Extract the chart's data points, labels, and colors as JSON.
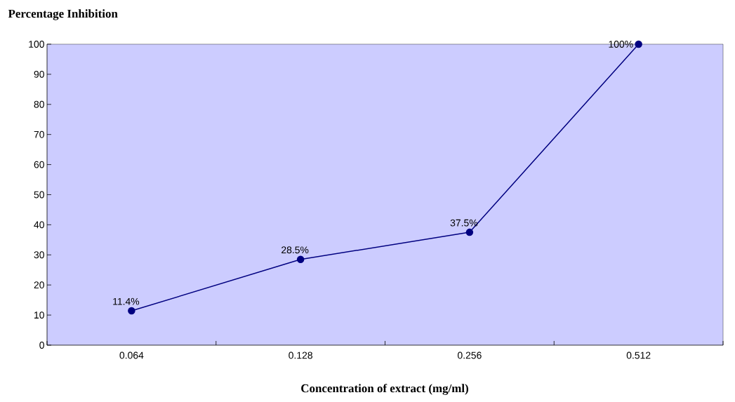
{
  "chart_data": {
    "type": "line",
    "title": "Percentage Inhibition",
    "xlabel": "Concentration of extract (mg/ml)",
    "categories": [
      "0.064",
      "0.128",
      "0.256",
      "0.512"
    ],
    "values": [
      11.4,
      28.5,
      37.5,
      100
    ],
    "value_labels": [
      "11.4%",
      "28.5%",
      "37.5%",
      "100%"
    ],
    "color": "#000080",
    "marker": "circle",
    "line_style": "solid",
    "ylim": [
      0,
      100
    ],
    "yticks": [
      0,
      10,
      20,
      30,
      40,
      50,
      60,
      70,
      80,
      90,
      100
    ],
    "grid": false
  }
}
